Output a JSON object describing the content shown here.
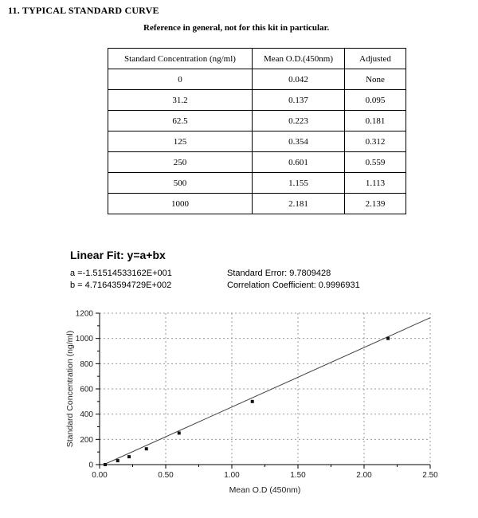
{
  "page": {
    "section_title": "11. TYPICAL STANDARD CURVE",
    "subtitle": "Reference in general, not for this kit in particular."
  },
  "table": {
    "headers": [
      "Standard Concentration (ng/ml)",
      "Mean O.D.(450nm)",
      "Adjusted"
    ],
    "rows": [
      [
        "0",
        "0.042",
        "None"
      ],
      [
        "31.2",
        "0.137",
        "0.095"
      ],
      [
        "62.5",
        "0.223",
        "0.181"
      ],
      [
        "125",
        "0.354",
        "0.312"
      ],
      [
        "250",
        "0.601",
        "0.559"
      ],
      [
        "500",
        "1.155",
        "1.113"
      ],
      [
        "1000",
        "2.181",
        "2.139"
      ]
    ]
  },
  "fit": {
    "title": "Linear Fit: y=a+bx",
    "a_label": "a =-1.51514533162E+001",
    "b_label": "b = 4.71643594729E+002",
    "standard_error": "Standard Error: 9.7809428",
    "correlation": "Correlation Coefficient: 0.9996931"
  },
  "chart_data": {
    "type": "scatter",
    "title": "",
    "x": [
      0.042,
      0.137,
      0.223,
      0.354,
      0.601,
      1.155,
      2.181
    ],
    "y": [
      0,
      31.2,
      62.5,
      125,
      250,
      500,
      1000
    ],
    "fit": {
      "a": -15.1514533162,
      "b": 471.643594729
    },
    "xlabel": "Mean O.D (450nm)",
    "ylabel": "Standard Concentration (ng/ml)",
    "xlim": [
      0,
      2.5
    ],
    "ylim": [
      0,
      1200
    ],
    "xticks": [
      0,
      0.5,
      1.0,
      1.5,
      2.0,
      2.5
    ],
    "xtick_labels": [
      "0.00",
      "0.50",
      "1.00",
      "1.50",
      "2.00",
      "2.50"
    ],
    "yticks": [
      0,
      200,
      400,
      600,
      800,
      1000,
      1200
    ],
    "grid": true,
    "legend": "none"
  }
}
